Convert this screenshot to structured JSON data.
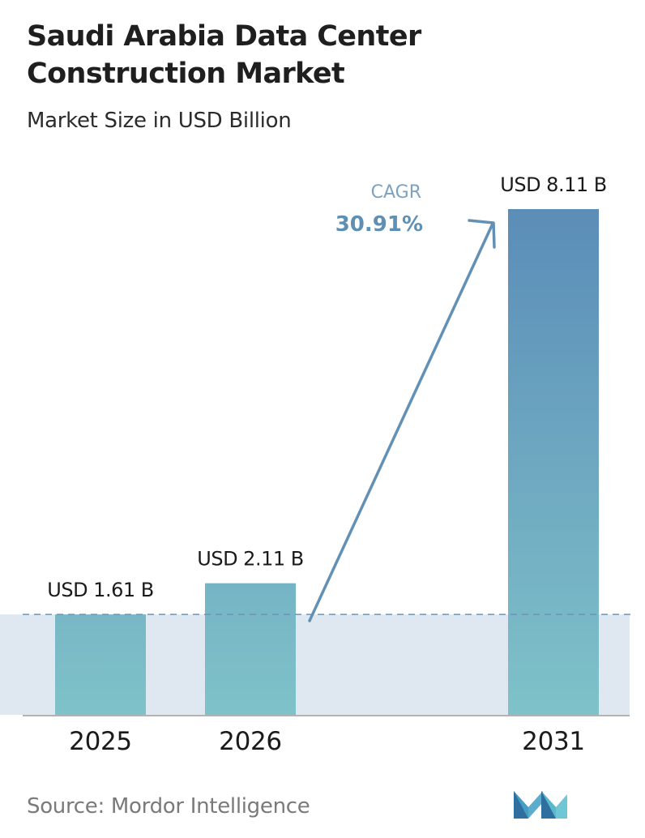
{
  "chart_data": {
    "type": "bar",
    "title": "Saudi Arabia Data Center Construction Market",
    "subtitle": "Market Size in USD Billion",
    "categories": [
      "2025",
      "2026",
      "2031"
    ],
    "values": [
      1.61,
      2.11,
      8.11
    ],
    "data_labels": [
      "USD 1.61 B",
      "USD 2.11 B",
      "USD 8.11 B"
    ],
    "annotation": {
      "label": "CAGR",
      "value": "30.91%"
    },
    "grid": false,
    "colors": {
      "bar_top": "#5b8db8",
      "bar_bottom": "#7fc0c8",
      "band": "#dfe8f1",
      "reference_line": "#6f93b5",
      "arrow": "#6391b6"
    }
  },
  "source": "Source: Mordor Intelligence",
  "logo": {
    "icon": "mordor-intelligence-logo-icon"
  }
}
